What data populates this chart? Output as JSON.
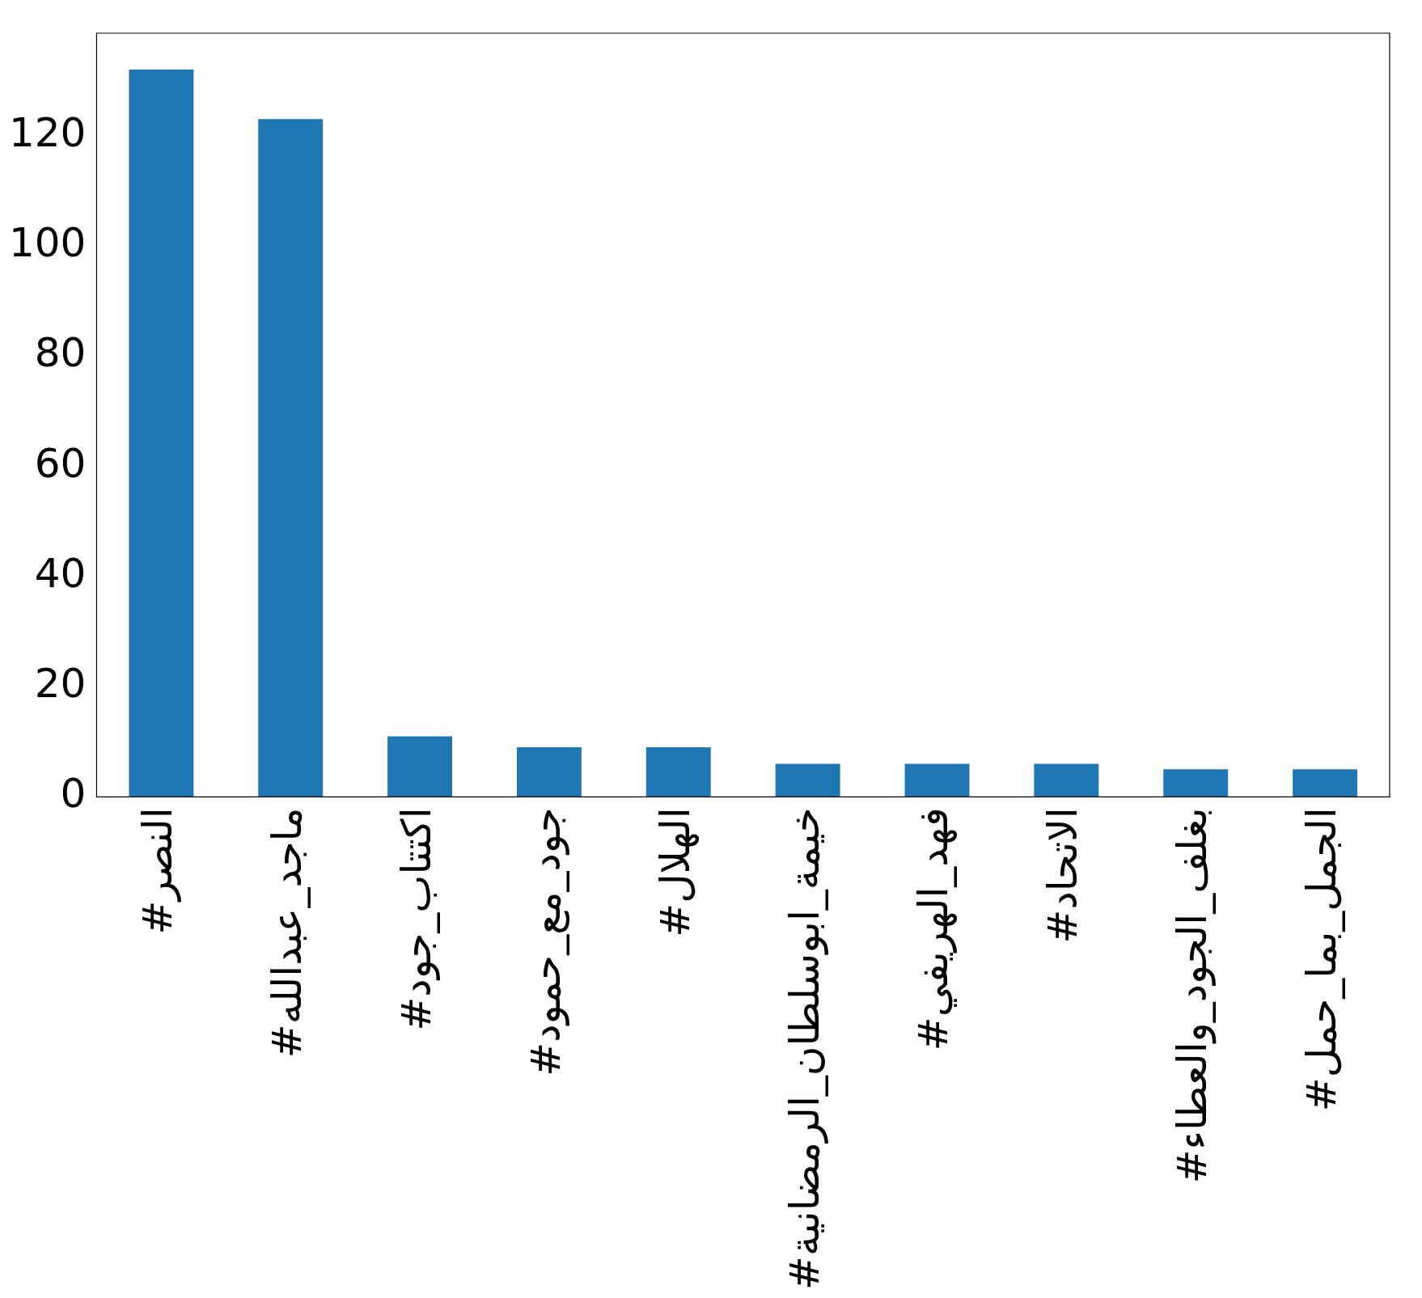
{
  "chart_data": {
    "type": "bar",
    "categories": [
      "#النصر",
      "#ماجد_عبدالله",
      "#اكتتاب_جود",
      "#جود_مع_حمود",
      "#الهلال",
      "#خيمة_ابوسلطان_الرمضانية",
      "#فهد_الهريفي",
      "#الاتحاد",
      "#بغلف_الجود_والعطاء",
      "#الجمل_بما_حمل"
    ],
    "values": [
      132,
      123,
      11,
      9,
      9,
      6,
      6,
      6,
      5,
      5
    ],
    "color": "#1f77b4",
    "ylim": [
      0,
      138.6
    ],
    "yticks": [
      0,
      20,
      40,
      60,
      80,
      100,
      120
    ],
    "grid": false,
    "legend": false
  }
}
